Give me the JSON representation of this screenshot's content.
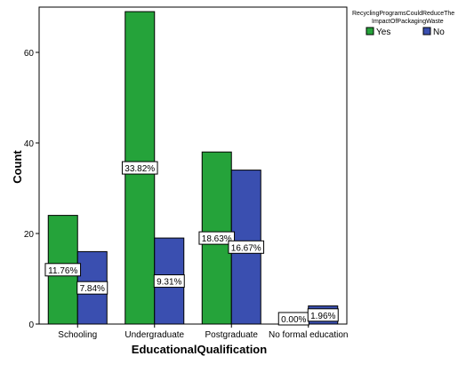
{
  "chart_data": {
    "type": "bar",
    "title": "",
    "xlabel": "EducationalQualification",
    "ylabel": "Count",
    "ylim": [
      0,
      70
    ],
    "yticks": [
      0,
      20,
      40,
      60
    ],
    "grid": false,
    "legend_position": "top-right",
    "legend_title": "RecyclingProgramsCouldReduceThe ImpactOfPackagingWaste",
    "categories": [
      "Schooling",
      "Undergraduate",
      "Postgraduate",
      "No formal education"
    ],
    "series": [
      {
        "name": "Yes",
        "color": "#25a33a",
        "values": [
          24,
          69,
          38,
          0
        ],
        "labels": [
          "11.76%",
          "33.82%",
          "18.63%",
          "0.00%"
        ]
      },
      {
        "name": "No",
        "color": "#3a4fb0",
        "values": [
          16,
          19,
          34,
          4
        ],
        "labels": [
          "7.84%",
          "9.31%",
          "16.67%",
          "1.96%"
        ]
      }
    ]
  }
}
